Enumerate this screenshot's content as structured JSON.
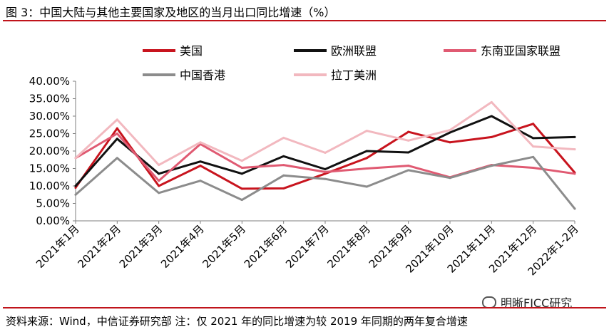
{
  "header": {
    "title": "图 3：中国大陆与其他主要国家及地区的当月出口同比增速（%）"
  },
  "footer": {
    "source": "资料来源：Wind，中信证券研究部 注：仅 2021 年的同比增速为较 2019 年同期的两年复合增速",
    "watermark": "明晰FICC研究"
  },
  "chart_data": {
    "type": "line",
    "title": "中国大陆与其他主要国家及地区的当月出口同比增速（%）",
    "xlabel": "",
    "ylabel": "",
    "ylim": [
      0,
      40
    ],
    "ytick_values": [
      0,
      5,
      10,
      15,
      20,
      25,
      30,
      35,
      40
    ],
    "ytick_labels": [
      "0.00%",
      "5.00%",
      "10.00%",
      "15.00%",
      "20.00%",
      "25.00%",
      "30.00%",
      "35.00%",
      "40.00%"
    ],
    "grid": false,
    "legend_position": "top",
    "categories": [
      "2021年1月",
      "2021年2月",
      "2021年3月",
      "2021年4月",
      "2021年5月",
      "2021年6月",
      "2021年7月",
      "2021年8月",
      "2021年9月",
      "2021年10月",
      "2021年11月",
      "2021年12月",
      "2022年1-2月"
    ],
    "series": [
      {
        "name": "美国",
        "color": "#c8141e",
        "values": [
          9.5,
          26.5,
          10.0,
          15.8,
          9.2,
          9.3,
          13.5,
          18.0,
          25.5,
          22.5,
          24.0,
          27.8,
          13.8
        ]
      },
      {
        "name": "欧洲联盟",
        "color": "#111111",
        "values": [
          10.0,
          23.5,
          13.5,
          17.0,
          13.5,
          18.5,
          14.8,
          20.0,
          19.6,
          25.3,
          30.0,
          23.7,
          24.0
        ]
      },
      {
        "name": "东南亚国家联盟",
        "color": "#e05a72",
        "values": [
          18.0,
          25.0,
          11.5,
          22.0,
          15.2,
          16.0,
          14.0,
          15.0,
          15.8,
          12.5,
          16.0,
          15.2,
          13.5
        ]
      },
      {
        "name": "中国香港",
        "color": "#8c8c8c",
        "values": [
          7.5,
          18.0,
          8.0,
          11.5,
          6.0,
          13.0,
          12.0,
          9.8,
          14.5,
          12.3,
          15.8,
          18.3,
          3.5
        ]
      },
      {
        "name": "拉丁美洲",
        "color": "#f2b8bf",
        "values": [
          18.0,
          29.0,
          16.0,
          22.5,
          17.2,
          23.8,
          19.5,
          25.8,
          23.0,
          26.0,
          34.0,
          21.3,
          20.5
        ]
      }
    ]
  }
}
